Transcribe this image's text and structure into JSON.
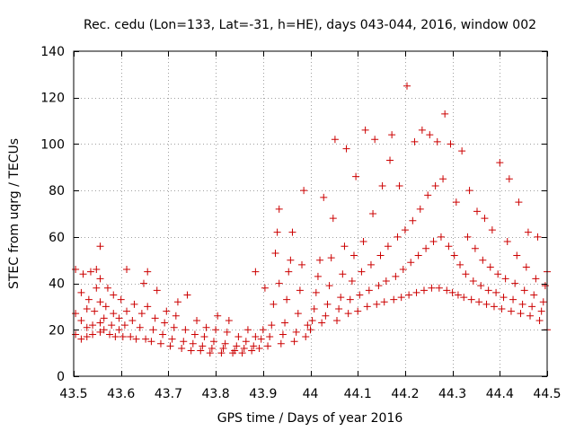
{
  "chart_data": {
    "type": "scatter",
    "title": "Rec. cedu (Lon=133, Lat=-31, h=HE), days 043-044, 2016, window 002",
    "xlabel": "GPS time / Days of year 2016",
    "ylabel": "STEC from uqrg / TECUs",
    "xlim": [
      43.5,
      44.5
    ],
    "ylim": [
      0,
      140
    ],
    "xticks": [
      43.5,
      43.6,
      43.7,
      43.8,
      43.9,
      44,
      44.1,
      44.2,
      44.3,
      44.4,
      44.5
    ],
    "xtick_labels": [
      "43.5",
      "43.6",
      "43.7",
      "43.8",
      "43.9",
      "44",
      "44.1",
      "44.2",
      "44.3",
      "44.4",
      "44.5"
    ],
    "yticks": [
      0,
      20,
      40,
      60,
      80,
      100,
      120,
      140
    ],
    "ytick_labels": [
      "0",
      "20",
      "40",
      "60",
      "80",
      "100",
      "120",
      "140"
    ],
    "grid": true,
    "marker": "+",
    "marker_color": "#cc0000",
    "series": [
      {
        "name": "STEC",
        "points": [
          [
            43.504,
            18
          ],
          [
            43.504,
            27
          ],
          [
            43.504,
            46
          ],
          [
            43.516,
            16
          ],
          [
            43.516,
            24
          ],
          [
            43.516,
            36
          ],
          [
            43.52,
            44
          ],
          [
            43.528,
            17
          ],
          [
            43.528,
            21
          ],
          [
            43.528,
            29
          ],
          [
            43.532,
            33
          ],
          [
            43.536,
            45
          ],
          [
            43.54,
            18
          ],
          [
            43.54,
            22
          ],
          [
            43.544,
            28
          ],
          [
            43.548,
            38
          ],
          [
            43.548,
            46
          ],
          [
            43.556,
            19
          ],
          [
            43.556,
            23
          ],
          [
            43.556,
            32
          ],
          [
            43.556,
            42
          ],
          [
            43.556,
            56
          ],
          [
            43.564,
            20
          ],
          [
            43.564,
            25
          ],
          [
            43.568,
            30
          ],
          [
            43.572,
            38
          ],
          [
            43.576,
            18
          ],
          [
            43.58,
            22
          ],
          [
            43.584,
            27
          ],
          [
            43.584,
            35
          ],
          [
            43.588,
            17
          ],
          [
            43.596,
            20
          ],
          [
            43.596,
            25
          ],
          [
            43.6,
            33
          ],
          [
            43.604,
            17
          ],
          [
            43.608,
            22
          ],
          [
            43.612,
            28
          ],
          [
            43.612,
            46
          ],
          [
            43.62,
            17
          ],
          [
            43.624,
            24
          ],
          [
            43.628,
            31
          ],
          [
            43.632,
            16
          ],
          [
            43.64,
            21
          ],
          [
            43.644,
            27
          ],
          [
            43.648,
            40
          ],
          [
            43.652,
            16
          ],
          [
            43.656,
            30
          ],
          [
            43.656,
            45
          ],
          [
            43.664,
            15
          ],
          [
            43.668,
            20
          ],
          [
            43.672,
            25
          ],
          [
            43.676,
            37
          ],
          [
            43.684,
            14
          ],
          [
            43.688,
            18
          ],
          [
            43.692,
            23
          ],
          [
            43.696,
            28
          ],
          [
            43.704,
            13
          ],
          [
            43.708,
            16
          ],
          [
            43.712,
            21
          ],
          [
            43.716,
            26
          ],
          [
            43.72,
            32
          ],
          [
            43.728,
            12
          ],
          [
            43.732,
            15
          ],
          [
            43.736,
            20
          ],
          [
            43.74,
            35
          ],
          [
            43.748,
            11
          ],
          [
            43.752,
            14
          ],
          [
            43.756,
            18
          ],
          [
            43.76,
            24
          ],
          [
            43.768,
            11
          ],
          [
            43.772,
            13
          ],
          [
            43.776,
            17
          ],
          [
            43.78,
            21
          ],
          [
            43.788,
            10
          ],
          [
            43.792,
            12
          ],
          [
            43.796,
            15
          ],
          [
            43.8,
            20
          ],
          [
            43.804,
            26
          ],
          [
            43.812,
            10
          ],
          [
            43.816,
            12
          ],
          [
            43.82,
            14
          ],
          [
            43.824,
            19
          ],
          [
            43.828,
            24
          ],
          [
            43.836,
            10
          ],
          [
            43.84,
            11
          ],
          [
            43.844,
            13
          ],
          [
            43.848,
            17
          ],
          [
            43.856,
            10
          ],
          [
            43.86,
            12
          ],
          [
            43.864,
            15
          ],
          [
            43.868,
            20
          ],
          [
            43.876,
            11
          ],
          [
            43.88,
            13
          ],
          [
            43.884,
            17
          ],
          [
            43.884,
            45
          ],
          [
            43.892,
            12
          ],
          [
            43.896,
            16
          ],
          [
            43.9,
            20
          ],
          [
            43.904,
            38
          ],
          [
            43.91,
            13
          ],
          [
            43.914,
            17
          ],
          [
            43.918,
            22
          ],
          [
            43.922,
            31
          ],
          [
            43.926,
            53
          ],
          [
            43.93,
            62
          ],
          [
            43.934,
            40
          ],
          [
            43.934,
            72
          ],
          [
            43.938,
            14
          ],
          [
            43.942,
            18
          ],
          [
            43.946,
            23
          ],
          [
            43.95,
            33
          ],
          [
            43.954,
            45
          ],
          [
            43.958,
            50
          ],
          [
            43.962,
            62
          ],
          [
            43.966,
            15
          ],
          [
            43.97,
            19
          ],
          [
            43.974,
            27
          ],
          [
            43.978,
            37
          ],
          [
            43.982,
            48
          ],
          [
            43.986,
            80
          ],
          [
            43.99,
            17
          ],
          [
            43.994,
            22
          ],
          [
            44.0,
            20
          ],
          [
            44.004,
            24
          ],
          [
            44.008,
            29
          ],
          [
            44.012,
            36
          ],
          [
            44.016,
            43
          ],
          [
            44.02,
            50
          ],
          [
            44.024,
            23
          ],
          [
            44.028,
            77
          ],
          [
            44.032,
            26
          ],
          [
            44.036,
            31
          ],
          [
            44.04,
            39
          ],
          [
            44.044,
            51
          ],
          [
            44.048,
            68
          ],
          [
            44.052,
            102
          ],
          [
            44.056,
            24
          ],
          [
            44.06,
            29
          ],
          [
            44.064,
            34
          ],
          [
            44.068,
            44
          ],
          [
            44.072,
            56
          ],
          [
            44.076,
            98
          ],
          [
            44.08,
            27
          ],
          [
            44.084,
            33
          ],
          [
            44.088,
            41
          ],
          [
            44.092,
            52
          ],
          [
            44.096,
            86
          ],
          [
            44.1,
            28
          ],
          [
            44.104,
            35
          ],
          [
            44.108,
            45
          ],
          [
            44.112,
            58
          ],
          [
            44.116,
            106
          ],
          [
            44.12,
            30
          ],
          [
            44.124,
            37
          ],
          [
            44.128,
            48
          ],
          [
            44.132,
            70
          ],
          [
            44.136,
            102
          ],
          [
            44.14,
            31
          ],
          [
            44.144,
            39
          ],
          [
            44.148,
            52
          ],
          [
            44.152,
            82
          ],
          [
            44.156,
            32
          ],
          [
            44.16,
            41
          ],
          [
            44.164,
            56
          ],
          [
            44.168,
            93
          ],
          [
            44.172,
            104
          ],
          [
            44.176,
            33
          ],
          [
            44.18,
            43
          ],
          [
            44.184,
            60
          ],
          [
            44.188,
            82
          ],
          [
            44.192,
            34
          ],
          [
            44.196,
            46
          ],
          [
            44.2,
            63
          ],
          [
            44.204,
            125
          ],
          [
            44.208,
            35
          ],
          [
            44.212,
            49
          ],
          [
            44.216,
            67
          ],
          [
            44.22,
            101
          ],
          [
            44.224,
            36
          ],
          [
            44.228,
            52
          ],
          [
            44.232,
            72
          ],
          [
            44.236,
            106
          ],
          [
            44.24,
            37
          ],
          [
            44.244,
            55
          ],
          [
            44.248,
            78
          ],
          [
            44.252,
            104
          ],
          [
            44.256,
            38
          ],
          [
            44.26,
            58
          ],
          [
            44.264,
            82
          ],
          [
            44.268,
            101
          ],
          [
            44.272,
            38
          ],
          [
            44.276,
            60
          ],
          [
            44.28,
            85
          ],
          [
            44.284,
            113
          ],
          [
            44.288,
            37
          ],
          [
            44.292,
            56
          ],
          [
            44.296,
            100
          ],
          [
            44.3,
            36
          ],
          [
            44.304,
            52
          ],
          [
            44.308,
            75
          ],
          [
            44.312,
            35
          ],
          [
            44.316,
            48
          ],
          [
            44.32,
            97
          ],
          [
            44.324,
            34
          ],
          [
            44.328,
            44
          ],
          [
            44.332,
            60
          ],
          [
            44.336,
            80
          ],
          [
            44.34,
            33
          ],
          [
            44.344,
            41
          ],
          [
            44.348,
            55
          ],
          [
            44.352,
            71
          ],
          [
            44.356,
            32
          ],
          [
            44.36,
            39
          ],
          [
            44.364,
            50
          ],
          [
            44.368,
            68
          ],
          [
            44.372,
            31
          ],
          [
            44.376,
            37
          ],
          [
            44.38,
            47
          ],
          [
            44.384,
            63
          ],
          [
            44.388,
            30
          ],
          [
            44.392,
            36
          ],
          [
            44.396,
            44
          ],
          [
            44.4,
            92
          ],
          [
            44.404,
            29
          ],
          [
            44.408,
            34
          ],
          [
            44.412,
            42
          ],
          [
            44.416,
            58
          ],
          [
            44.42,
            85
          ],
          [
            44.424,
            28
          ],
          [
            44.428,
            33
          ],
          [
            44.432,
            40
          ],
          [
            44.436,
            52
          ],
          [
            44.44,
            75
          ],
          [
            44.444,
            27
          ],
          [
            44.448,
            31
          ],
          [
            44.452,
            37
          ],
          [
            44.456,
            47
          ],
          [
            44.46,
            62
          ],
          [
            44.464,
            26
          ],
          [
            44.468,
            30
          ],
          [
            44.472,
            35
          ],
          [
            44.476,
            42
          ],
          [
            44.48,
            60
          ],
          [
            44.484,
            24
          ],
          [
            44.488,
            28
          ],
          [
            44.492,
            32
          ],
          [
            44.496,
            39
          ],
          [
            44.5,
            45
          ],
          [
            44.5,
            20
          ]
        ]
      }
    ]
  }
}
